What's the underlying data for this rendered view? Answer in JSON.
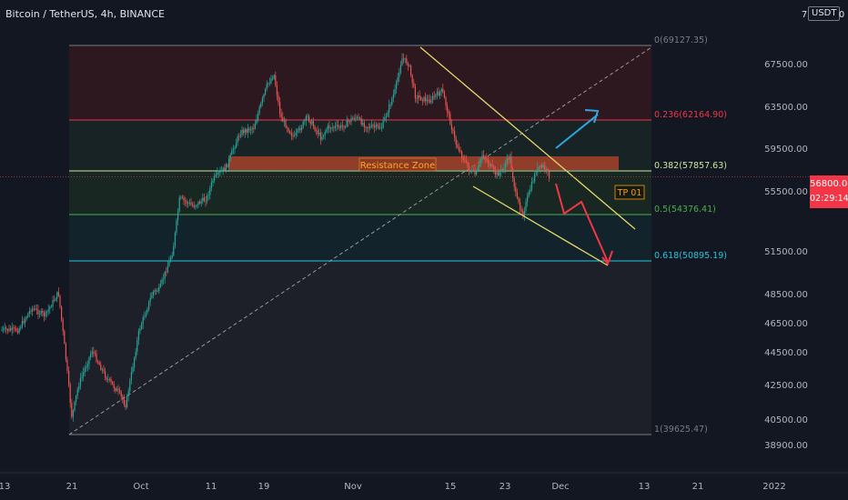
{
  "header": {
    "title": "Bitcoin / TetherUS, 4h, BINANCE",
    "currency": "USDT",
    "corner_digit": "7",
    "corner_digit2": "0"
  },
  "price_tag": {
    "price": "56800.01",
    "countdown": "02:29:14"
  },
  "colors": {
    "background": "#131722",
    "up": "#26a69a",
    "down": "#ef5350",
    "fib_0": "#787b86",
    "fib_0236": "#f23645",
    "fib_0382": "#c7e7a0",
    "fib_05": "#4caf50",
    "fib_0618": "#26c6da",
    "fib_1": "#787b86",
    "resistance_zone": "#c44a2c",
    "channel": "#e6d86a",
    "arrow_up": "#2ea6de",
    "arrow_down": "#f23645",
    "tp_label": "#ff9800"
  },
  "chart_data": {
    "type": "candlestick",
    "symbol": "Bitcoin / TetherUS",
    "interval": "4h",
    "exchange": "BINANCE",
    "y_axis": {
      "range": [
        38000,
        71000
      ],
      "ticks": [
        "67500.00",
        "63500.00",
        "59500.00",
        "55500.00",
        "51500.00",
        "48500.00",
        "46500.00",
        "44500.00",
        "42500.00",
        "40500.00",
        "38900.00"
      ]
    },
    "x_axis": {
      "ticks": [
        "13",
        "21",
        "Oct",
        "11",
        "19",
        "Nov",
        "15",
        "23",
        "Dec",
        "13",
        "21",
        "2022"
      ]
    },
    "price_path": [
      [
        "Sep 13",
        46000
      ],
      [
        "Sep 15",
        47500
      ],
      [
        "Sep 17",
        47000
      ],
      [
        "Sep 19",
        48600
      ],
      [
        "Sep 20",
        44500
      ],
      [
        "Sep 21",
        40600
      ],
      [
        "Sep 22",
        42500
      ],
      [
        "Sep 24",
        44600
      ],
      [
        "Sep 26",
        43000
      ],
      [
        "Sep 28",
        42000
      ],
      [
        "Sep 29",
        41300
      ],
      [
        "Oct 1",
        46000
      ],
      [
        "Oct 3",
        48600
      ],
      [
        "Oct 4",
        48800
      ],
      [
        "Oct 6",
        51500
      ],
      [
        "Oct 7",
        55000
      ],
      [
        "Oct 9",
        54500
      ],
      [
        "Oct 11",
        55000
      ],
      [
        "Oct 12",
        56600
      ],
      [
        "Oct 14",
        57800
      ],
      [
        "Oct 15",
        59500
      ],
      [
        "Oct 16",
        61000
      ],
      [
        "Oct 18",
        61500
      ],
      [
        "Oct 20",
        65500
      ],
      [
        "Oct 21",
        66500
      ],
      [
        "Oct 22",
        62500
      ],
      [
        "Oct 24",
        60500
      ],
      [
        "Oct 26",
        62500
      ],
      [
        "Oct 28",
        60500
      ],
      [
        "Oct 29",
        61500
      ],
      [
        "Oct 31",
        61500
      ],
      [
        "Nov 2",
        62500
      ],
      [
        "Nov 4",
        61500
      ],
      [
        "Nov 6",
        61500
      ],
      [
        "Nov 8",
        65000
      ],
      [
        "Nov 9",
        68000
      ],
      [
        "Nov 10",
        67500
      ],
      [
        "Nov 11",
        64500
      ],
      [
        "Nov 13",
        64000
      ],
      [
        "Nov 15",
        65000
      ],
      [
        "Nov 16",
        62500
      ],
      [
        "Nov 17",
        60000
      ],
      [
        "Nov 19",
        57500
      ],
      [
        "Nov 20",
        57000
      ],
      [
        "Nov 21",
        59000
      ],
      [
        "Nov 22",
        58000
      ],
      [
        "Nov 23",
        57000
      ],
      [
        "Nov 24",
        57500
      ],
      [
        "Nov 25",
        58800
      ],
      [
        "Nov 26",
        55000
      ],
      [
        "Nov 27",
        54000
      ],
      [
        "Nov 28",
        55500
      ],
      [
        "Nov 29",
        57500
      ],
      [
        "Nov 30",
        57800
      ],
      [
        "Dec 1",
        56800
      ]
    ],
    "fibonacci": [
      {
        "level": "0",
        "price": "69127.35",
        "label": "0(69127.35)"
      },
      {
        "level": "0.236",
        "price": "62164.90",
        "label": "0.236(62164.90)"
      },
      {
        "level": "0.382",
        "price": "57857.63",
        "label": "0.382(57857.63)"
      },
      {
        "level": "0.5",
        "price": "54376.41",
        "label": "0.5(54376.41)"
      },
      {
        "level": "0.618",
        "price": "50895.19",
        "label": "0.618(50895.19)"
      },
      {
        "level": "1",
        "price": "39625.47",
        "label": "1(39625.47)"
      }
    ],
    "annotations": {
      "resistance_zone": {
        "label": "Resistance Zone",
        "price_range": [
          57700,
          59100
        ]
      },
      "take_profit": {
        "label": "TP 01"
      }
    },
    "current_price": 56800.01
  }
}
